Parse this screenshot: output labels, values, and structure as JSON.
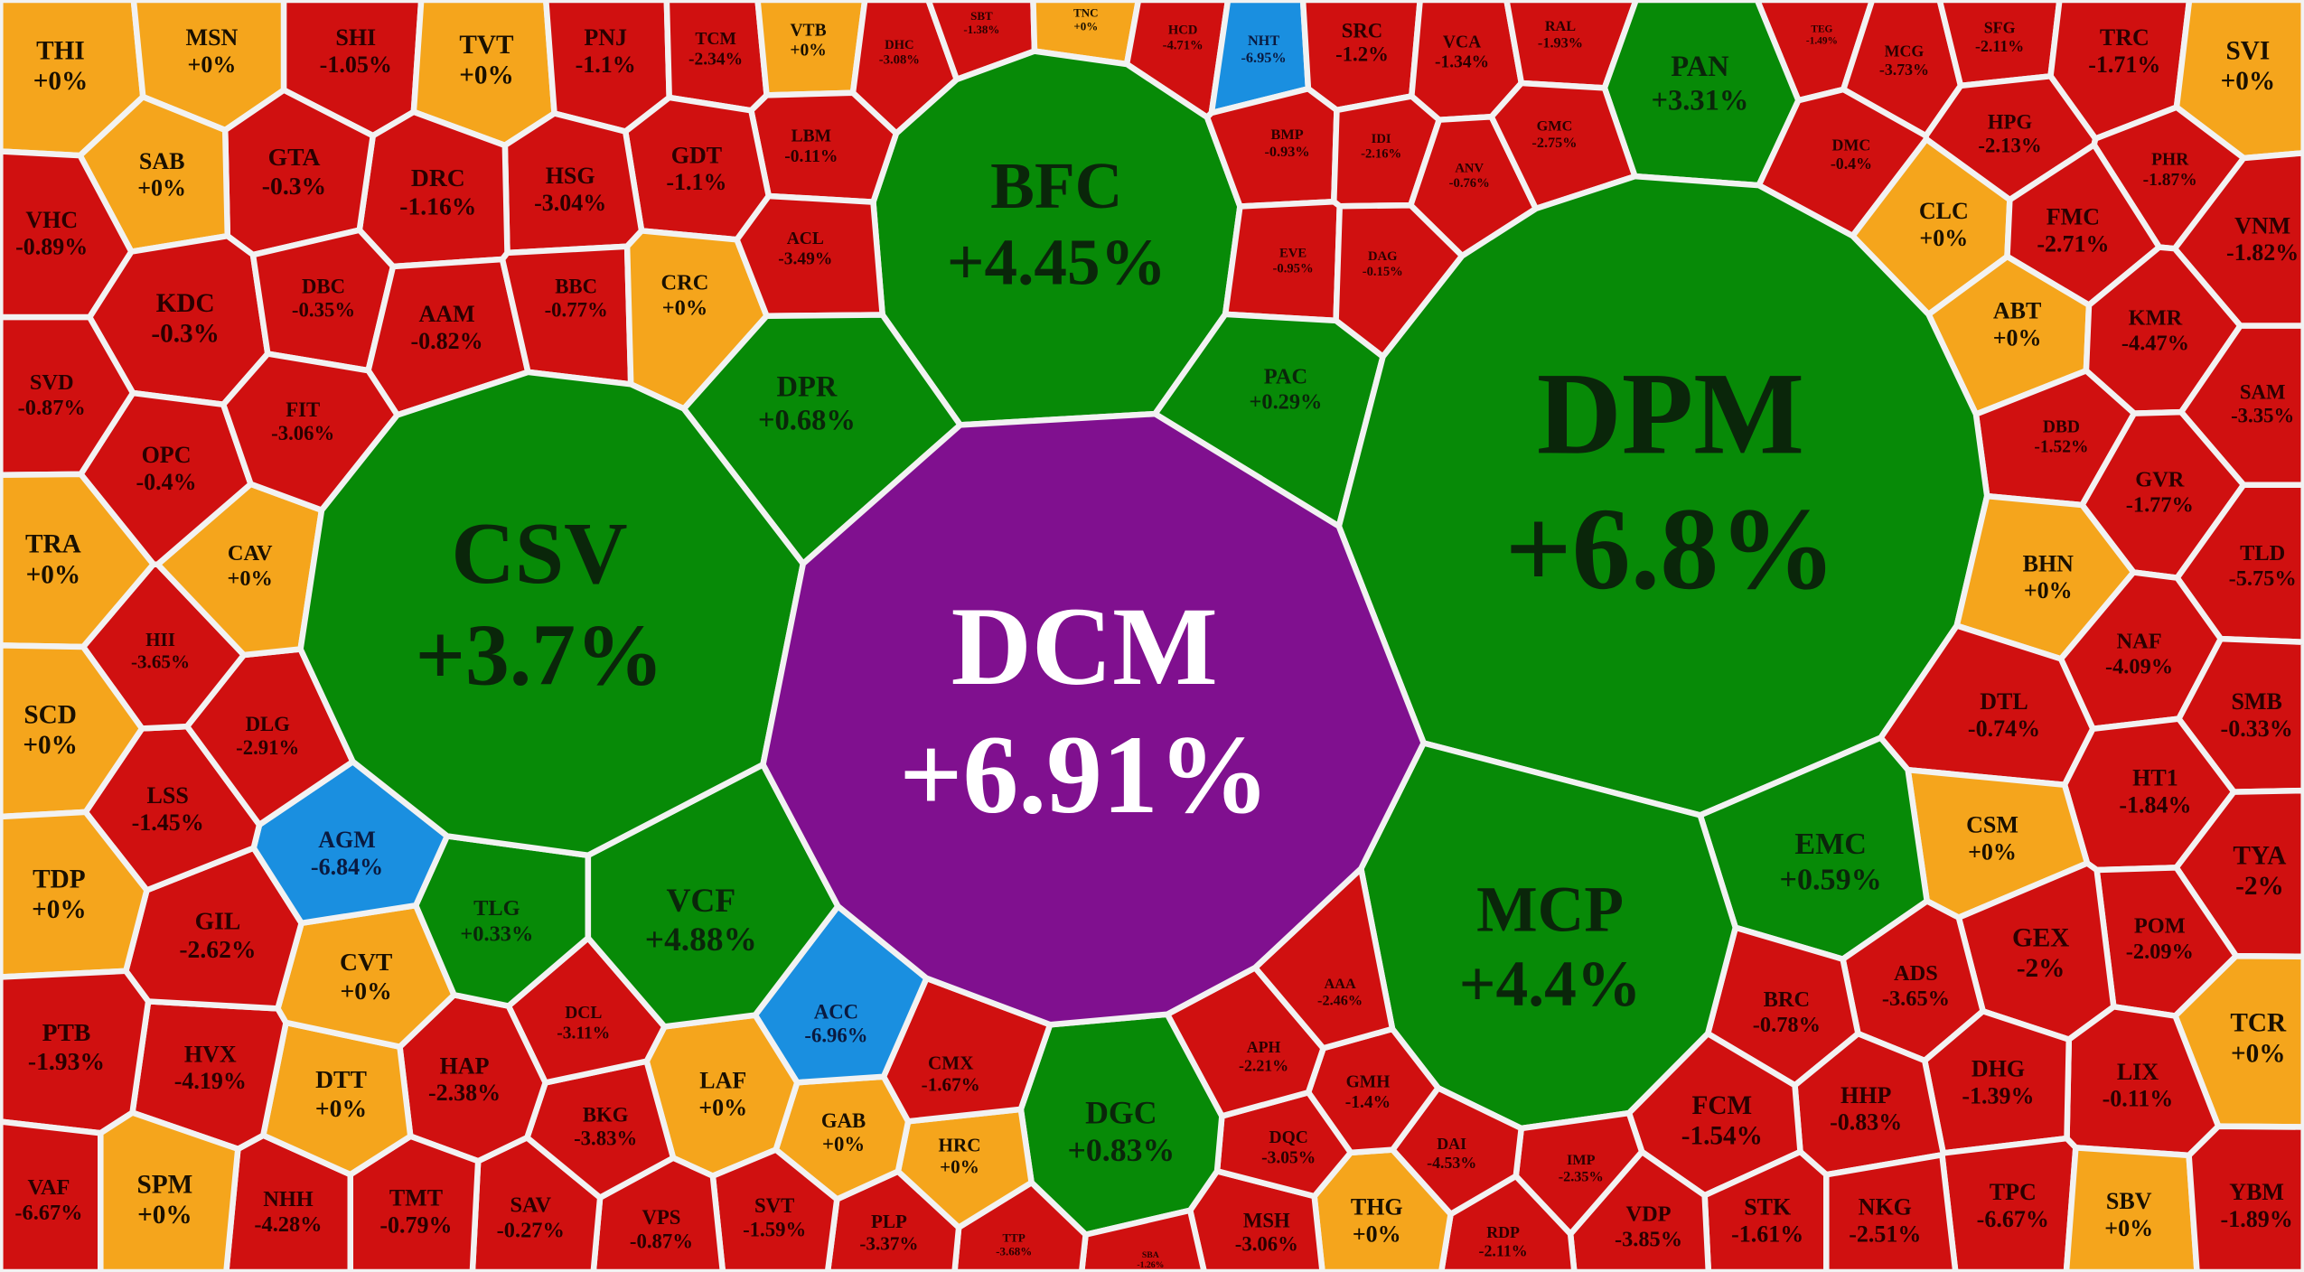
{
  "cells": [
    {
      "ticker": "THI",
      "change": "+0%"
    },
    {
      "ticker": "MSN",
      "change": "+0%"
    },
    {
      "ticker": "SHI",
      "change": "-1.05%"
    },
    {
      "ticker": "TVT",
      "change": "+0%"
    },
    {
      "ticker": "PNJ",
      "change": "-1.1%"
    },
    {
      "ticker": "TCM",
      "change": "-2.34%"
    },
    {
      "ticker": "VTB",
      "change": "+0%"
    },
    {
      "ticker": "DHC",
      "change": "-3.08%"
    },
    {
      "ticker": "SBT",
      "change": "-1.38%"
    },
    {
      "ticker": "TNC",
      "change": "+0%"
    },
    {
      "ticker": "HCD",
      "change": "-4.71%"
    },
    {
      "ticker": "NHT",
      "change": "-6.95%"
    },
    {
      "ticker": "SRC",
      "change": "-1.2%"
    },
    {
      "ticker": "VCA",
      "change": "-1.34%"
    },
    {
      "ticker": "RAL",
      "change": "-1.93%"
    },
    {
      "ticker": "TEG",
      "change": "-1.49%"
    },
    {
      "ticker": "MCG",
      "change": "-3.73%"
    },
    {
      "ticker": "SFG",
      "change": "-2.11%"
    },
    {
      "ticker": "TRC",
      "change": "-1.71%"
    },
    {
      "ticker": "SVI",
      "change": "+0%"
    },
    {
      "ticker": "PAN",
      "change": "+3.31%"
    },
    {
      "ticker": "BFC",
      "change": "+4.45%"
    },
    {
      "ticker": "LBM",
      "change": "-0.11%"
    },
    {
      "ticker": "GDT",
      "change": "-1.1%"
    },
    {
      "ticker": "HSG",
      "change": "-3.04%"
    },
    {
      "ticker": "DRC",
      "change": "-1.16%"
    },
    {
      "ticker": "GTA",
      "change": "-0.3%"
    },
    {
      "ticker": "SAB",
      "change": "+0%"
    },
    {
      "ticker": "VHC",
      "change": "-0.89%"
    },
    {
      "ticker": "KDC",
      "change": "-0.3%"
    },
    {
      "ticker": "DBC",
      "change": "-0.35%"
    },
    {
      "ticker": "AAM",
      "change": "-0.82%"
    },
    {
      "ticker": "BBC",
      "change": "-0.77%"
    },
    {
      "ticker": "CRC",
      "change": "+0%"
    },
    {
      "ticker": "ACL",
      "change": "-3.49%"
    },
    {
      "ticker": "DPR",
      "change": "+0.68%"
    },
    {
      "ticker": "BMP",
      "change": "-0.93%"
    },
    {
      "ticker": "IDI",
      "change": "-2.16%"
    },
    {
      "ticker": "ANV",
      "change": "-0.76%"
    },
    {
      "ticker": "GMC",
      "change": "-2.75%"
    },
    {
      "ticker": "EVE",
      "change": "-0.95%"
    },
    {
      "ticker": "DAG",
      "change": "-0.15%"
    },
    {
      "ticker": "PAC",
      "change": "+0.29%"
    },
    {
      "ticker": "DMC",
      "change": "-0.4%"
    },
    {
      "ticker": "HPG",
      "change": "-2.13%"
    },
    {
      "ticker": "CLC",
      "change": "+0%"
    },
    {
      "ticker": "PHR",
      "change": "-1.87%"
    },
    {
      "ticker": "FMC",
      "change": "-2.71%"
    },
    {
      "ticker": "VNM",
      "change": "-1.82%"
    },
    {
      "ticker": "ABT",
      "change": "+0%"
    },
    {
      "ticker": "KMR",
      "change": "-4.47%"
    },
    {
      "ticker": "SAM",
      "change": "-3.35%"
    },
    {
      "ticker": "DBD",
      "change": "-1.52%"
    },
    {
      "ticker": "DPM",
      "change": "+6.8%"
    },
    {
      "ticker": "GVR",
      "change": "-1.77%"
    },
    {
      "ticker": "TLD",
      "change": "-5.75%"
    },
    {
      "ticker": "BHN",
      "change": "+0%"
    },
    {
      "ticker": "NAF",
      "change": "-4.09%"
    },
    {
      "ticker": "DTL",
      "change": "-0.74%"
    },
    {
      "ticker": "SMB",
      "change": "-0.33%"
    },
    {
      "ticker": "HT1",
      "change": "-1.84%"
    },
    {
      "ticker": "CSM",
      "change": "+0%"
    },
    {
      "ticker": "TYA",
      "change": "-2%"
    },
    {
      "ticker": "EMC",
      "change": "+0.59%"
    },
    {
      "ticker": "POM",
      "change": "-2.09%"
    },
    {
      "ticker": "GEX",
      "change": "-2%"
    },
    {
      "ticker": "ADS",
      "change": "-3.65%"
    },
    {
      "ticker": "BRC",
      "change": "-0.78%"
    },
    {
      "ticker": "MCP",
      "change": "+4.4%"
    },
    {
      "ticker": "TCR",
      "change": "+0%"
    },
    {
      "ticker": "LIX",
      "change": "-0.11%"
    },
    {
      "ticker": "DHG",
      "change": "-1.39%"
    },
    {
      "ticker": "HHP",
      "change": "-0.83%"
    },
    {
      "ticker": "FCM",
      "change": "-1.54%"
    },
    {
      "ticker": "TPC",
      "change": "-6.67%"
    },
    {
      "ticker": "SBV",
      "change": "+0%"
    },
    {
      "ticker": "YBM",
      "change": "-1.89%"
    },
    {
      "ticker": "NKG",
      "change": "-2.51%"
    },
    {
      "ticker": "STK",
      "change": "-1.61%"
    },
    {
      "ticker": "VDP",
      "change": "-3.85%"
    },
    {
      "ticker": "IMP",
      "change": "-2.35%"
    },
    {
      "ticker": "RDP",
      "change": "-2.11%"
    },
    {
      "ticker": "DAI",
      "change": "-4.53%"
    },
    {
      "ticker": "THG",
      "change": "+0%"
    },
    {
      "ticker": "MSH",
      "change": "-3.06%"
    },
    {
      "ticker": "GMH",
      "change": "-1.4%"
    },
    {
      "ticker": "DQC",
      "change": "-3.05%"
    },
    {
      "ticker": "APH",
      "change": "-2.21%"
    },
    {
      "ticker": "AAA",
      "change": "-2.46%"
    },
    {
      "ticker": "DGC",
      "change": "+0.83%"
    },
    {
      "ticker": "SBA",
      "change": "-1.26%"
    },
    {
      "ticker": "TTP",
      "change": "-3.68%"
    },
    {
      "ticker": "PLP",
      "change": "-3.37%"
    },
    {
      "ticker": "HRC",
      "change": "+0%"
    },
    {
      "ticker": "GAB",
      "change": "+0%"
    },
    {
      "ticker": "CMX",
      "change": "-1.67%"
    },
    {
      "ticker": "ACC",
      "change": "-6.96%"
    },
    {
      "ticker": "LAF",
      "change": "+0%"
    },
    {
      "ticker": "SVT",
      "change": "-1.59%"
    },
    {
      "ticker": "VPS",
      "change": "-0.87%"
    },
    {
      "ticker": "SAV",
      "change": "-0.27%"
    },
    {
      "ticker": "BKG",
      "change": "-3.83%"
    },
    {
      "ticker": "DCL",
      "change": "-3.11%"
    },
    {
      "ticker": "HAP",
      "change": "-2.38%"
    },
    {
      "ticker": "TMT",
      "change": "-0.79%"
    },
    {
      "ticker": "NHH",
      "change": "-4.28%"
    },
    {
      "ticker": "DTT",
      "change": "+0%"
    },
    {
      "ticker": "HVX",
      "change": "-4.19%"
    },
    {
      "ticker": "CVT",
      "change": "+0%"
    },
    {
      "ticker": "GIL",
      "change": "-2.62%"
    },
    {
      "ticker": "TLG",
      "change": "+0.33%"
    },
    {
      "ticker": "VCF",
      "change": "+4.88%"
    },
    {
      "ticker": "AGM",
      "change": "-6.84%"
    },
    {
      "ticker": "LSS",
      "change": "-1.45%"
    },
    {
      "ticker": "DLG",
      "change": "-2.91%"
    },
    {
      "ticker": "HII",
      "change": "-3.65%"
    },
    {
      "ticker": "CAV",
      "change": "+0%"
    },
    {
      "ticker": "OPC",
      "change": "-0.4%"
    },
    {
      "ticker": "FIT",
      "change": "-3.06%"
    },
    {
      "ticker": "SVD",
      "change": "-0.87%"
    },
    {
      "ticker": "TRA",
      "change": "+0%"
    },
    {
      "ticker": "SCD",
      "change": "+0%"
    },
    {
      "ticker": "TDP",
      "change": "+0%"
    },
    {
      "ticker": "PTB",
      "change": "-1.93%"
    },
    {
      "ticker": "VAF",
      "change": "-6.67%"
    },
    {
      "ticker": "SPM",
      "change": "+0%"
    },
    {
      "ticker": "CSV",
      "change": "+3.7%"
    },
    {
      "ticker": "DCM",
      "change": "+6.91%"
    }
  ]
}
